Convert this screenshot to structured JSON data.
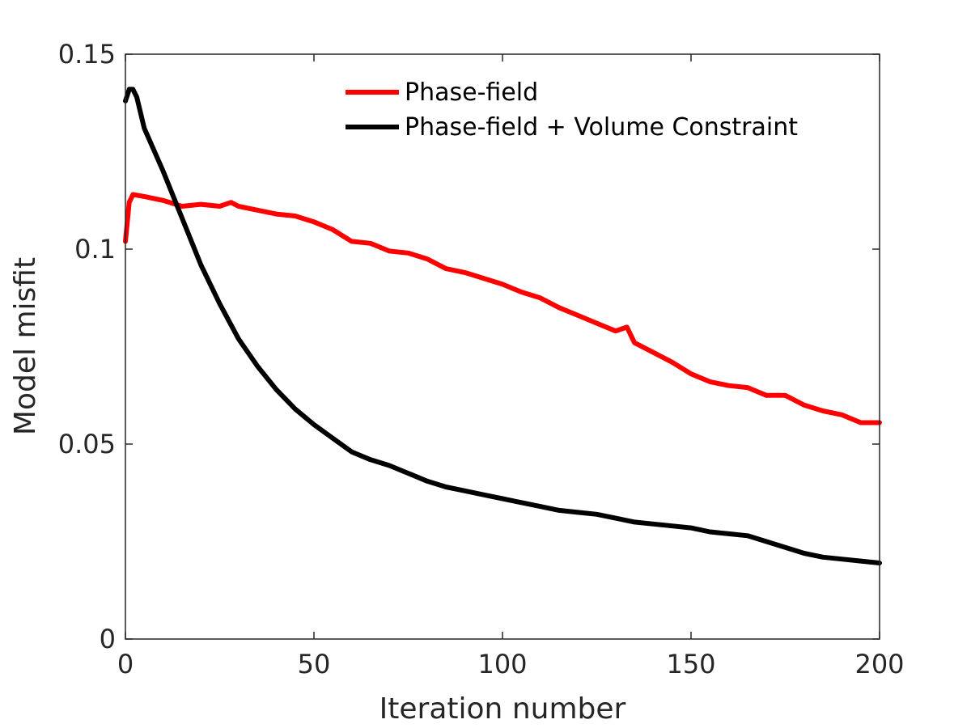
{
  "chart_data": {
    "type": "line",
    "title": "",
    "xlabel": "Iteration number",
    "ylabel": "Model misfit",
    "xlim": [
      0,
      200
    ],
    "ylim": [
      0,
      0.15
    ],
    "x_ticks": [
      0,
      50,
      100,
      150,
      200
    ],
    "x_tick_labels": [
      "0",
      "50",
      "100",
      "150",
      "200"
    ],
    "y_ticks": [
      0,
      0.05,
      0.1,
      0.15
    ],
    "y_tick_labels": [
      "0",
      "0.05",
      "0.1",
      "0.15"
    ],
    "grid": false,
    "legend_position": "top-center",
    "series": [
      {
        "name": "Phase-field",
        "color": "#ff0000",
        "x": [
          0,
          1,
          2,
          5,
          10,
          15,
          20,
          25,
          28,
          30,
          35,
          40,
          45,
          50,
          55,
          60,
          65,
          70,
          75,
          80,
          85,
          90,
          95,
          100,
          105,
          110,
          115,
          120,
          125,
          130,
          133,
          135,
          140,
          145,
          150,
          155,
          160,
          165,
          170,
          175,
          180,
          185,
          190,
          195,
          200
        ],
        "y": [
          0.102,
          0.112,
          0.114,
          0.1135,
          0.1125,
          0.111,
          0.1115,
          0.111,
          0.112,
          0.111,
          0.11,
          0.109,
          0.1085,
          0.107,
          0.105,
          0.102,
          0.1015,
          0.0995,
          0.099,
          0.0975,
          0.095,
          0.094,
          0.0925,
          0.091,
          0.089,
          0.0875,
          0.085,
          0.083,
          0.081,
          0.079,
          0.08,
          0.076,
          0.0735,
          0.071,
          0.068,
          0.066,
          0.065,
          0.0645,
          0.0625,
          0.0625,
          0.06,
          0.0585,
          0.0575,
          0.0555,
          0.0555
        ]
      },
      {
        "name": "Phase-field + Volume Constraint",
        "color": "#000000",
        "x": [
          0,
          1,
          2,
          3,
          5,
          10,
          15,
          20,
          25,
          30,
          35,
          40,
          45,
          50,
          55,
          60,
          65,
          70,
          75,
          80,
          85,
          90,
          95,
          100,
          105,
          110,
          115,
          120,
          125,
          130,
          135,
          140,
          145,
          150,
          155,
          160,
          165,
          170,
          175,
          180,
          185,
          190,
          195,
          200
        ],
        "y": [
          0.138,
          0.141,
          0.141,
          0.139,
          0.131,
          0.12,
          0.108,
          0.096,
          0.086,
          0.077,
          0.07,
          0.064,
          0.059,
          0.055,
          0.0515,
          0.048,
          0.046,
          0.0445,
          0.0425,
          0.0405,
          0.039,
          0.038,
          0.037,
          0.036,
          0.035,
          0.034,
          0.033,
          0.0325,
          0.032,
          0.031,
          0.03,
          0.0295,
          0.029,
          0.0285,
          0.0275,
          0.027,
          0.0265,
          0.025,
          0.0235,
          0.022,
          0.021,
          0.0205,
          0.02,
          0.0195
        ]
      }
    ]
  }
}
